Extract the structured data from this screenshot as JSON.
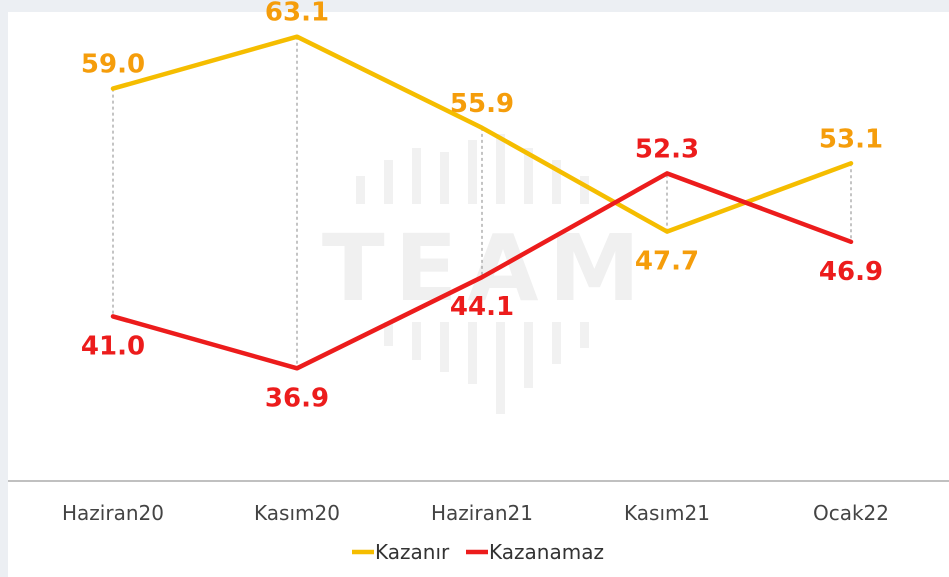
{
  "chart_data": {
    "type": "line",
    "categories": [
      "Haziran20",
      "Kasım20",
      "Haziran21",
      "Kasım21",
      "Ocak22"
    ],
    "series": [
      {
        "name": "Kazanır",
        "color": "#f5bd00",
        "label_color": "#f59d0b",
        "values": [
          59.0,
          63.1,
          55.9,
          47.7,
          53.1
        ]
      },
      {
        "name": "Kazanamaz",
        "color": "#ec1c1c",
        "label_color": "#ec1c1c",
        "values": [
          41.0,
          36.9,
          44.1,
          52.3,
          46.9
        ]
      }
    ],
    "value_labels": {
      "series_0": [
        "59.0",
        "63.1",
        "55.9",
        "47.7",
        "53.1"
      ],
      "series_1": [
        "41.0",
        "36.9",
        "44.1",
        "52.3",
        "46.9"
      ]
    },
    "ylim": [
      28,
      66
    ],
    "grid": false,
    "drop_lines": true,
    "legend_position": "bottom",
    "watermark": "TEAM",
    "axis_color": "#9a9a9a"
  }
}
